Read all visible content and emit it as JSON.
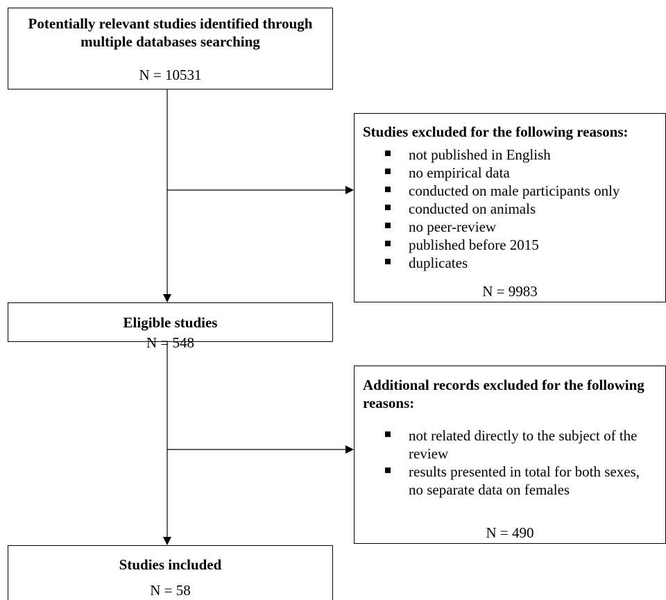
{
  "identified": {
    "title": "Potentially relevant studies identified through multiple databases searching",
    "count": "N = 10531"
  },
  "excluded_first": {
    "title": "Studies excluded for the following reasons:",
    "reasons": [
      "not published in English",
      "no empirical data",
      "conducted on male participants only",
      "conducted on animals",
      "no peer-review",
      "published before 2015",
      "duplicates"
    ],
    "count": "N = 9983"
  },
  "eligible": {
    "title": "Eligible studies",
    "count": "N = 548"
  },
  "excluded_second": {
    "title": "Additional records excluded for the following reasons:",
    "reasons": [
      "not related directly to the subject of the review",
      "results presented in total for both sexes, no separate data on females"
    ],
    "count": "N = 490"
  },
  "included": {
    "title": "Studies included",
    "count": "N = 58"
  }
}
